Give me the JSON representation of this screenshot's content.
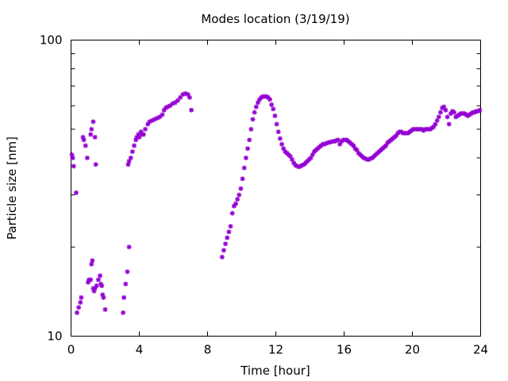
{
  "chart_data": {
    "type": "scatter",
    "title": "Modes location (3/19/19)",
    "xlabel": "Time [hour]",
    "ylabel": "Particle size [nm]",
    "xlim": [
      0,
      24
    ],
    "ylim": [
      10,
      100
    ],
    "yscale": "log",
    "grid": false,
    "legend": "none",
    "marker_color": "#9400d3",
    "x_ticks": [
      {
        "value": 0,
        "label": "0"
      },
      {
        "value": 4,
        "label": "4"
      },
      {
        "value": 8,
        "label": "8"
      },
      {
        "value": 12,
        "label": "12"
      },
      {
        "value": 16,
        "label": "16"
      },
      {
        "value": 20,
        "label": "20"
      },
      {
        "value": 24,
        "label": "24"
      }
    ],
    "y_ticks": [
      {
        "value": 10,
        "label": "10"
      },
      {
        "value": 100,
        "label": "100"
      }
    ],
    "y_minor_ticks": [
      20,
      30,
      40,
      50,
      60,
      70,
      80,
      90
    ],
    "points": [
      [
        0.05,
        41
      ],
      [
        0.1,
        40
      ],
      [
        0.15,
        37.5
      ],
      [
        0.3,
        30.5
      ],
      [
        0.35,
        12
      ],
      [
        0.45,
        12.5
      ],
      [
        0.55,
        13
      ],
      [
        0.6,
        13.5
      ],
      [
        0.7,
        47
      ],
      [
        0.75,
        46
      ],
      [
        0.85,
        44
      ],
      [
        0.95,
        40
      ],
      [
        1.0,
        15.2
      ],
      [
        1.05,
        15.5
      ],
      [
        1.15,
        15.5
      ],
      [
        1.2,
        17.5
      ],
      [
        1.25,
        18
      ],
      [
        1.3,
        14.5
      ],
      [
        1.35,
        14.2
      ],
      [
        1.4,
        14.5
      ],
      [
        1.5,
        14.8
      ],
      [
        1.6,
        15.5
      ],
      [
        1.7,
        16
      ],
      [
        1.75,
        15
      ],
      [
        1.8,
        14.8
      ],
      [
        1.85,
        13.8
      ],
      [
        1.9,
        13.5
      ],
      [
        2.0,
        12.3
      ],
      [
        1.15,
        48
      ],
      [
        1.2,
        50
      ],
      [
        1.3,
        53
      ],
      [
        1.4,
        47
      ],
      [
        1.45,
        38
      ],
      [
        3.05,
        12
      ],
      [
        3.1,
        13.5
      ],
      [
        3.2,
        15
      ],
      [
        3.3,
        16.5
      ],
      [
        3.4,
        20
      ],
      [
        3.35,
        38
      ],
      [
        3.4,
        39
      ],
      [
        3.5,
        40
      ],
      [
        3.6,
        42
      ],
      [
        3.7,
        44
      ],
      [
        3.8,
        46
      ],
      [
        3.85,
        47
      ],
      [
        3.95,
        48
      ],
      [
        4.0,
        47
      ],
      [
        4.1,
        49
      ],
      [
        4.15,
        48
      ],
      [
        4.25,
        48
      ],
      [
        4.35,
        50
      ],
      [
        4.5,
        52
      ],
      [
        4.6,
        53
      ],
      [
        4.75,
        53.5
      ],
      [
        4.9,
        54
      ],
      [
        5.05,
        54.5
      ],
      [
        5.2,
        55
      ],
      [
        5.35,
        56
      ],
      [
        5.45,
        58
      ],
      [
        5.55,
        59
      ],
      [
        5.65,
        59.5
      ],
      [
        5.8,
        60
      ],
      [
        5.95,
        61
      ],
      [
        6.1,
        61.5
      ],
      [
        6.25,
        62.5
      ],
      [
        6.4,
        64
      ],
      [
        6.55,
        65.5
      ],
      [
        6.7,
        66
      ],
      [
        6.85,
        65.5
      ],
      [
        6.95,
        64
      ],
      [
        7.05,
        58
      ],
      [
        8.85,
        18.5
      ],
      [
        8.95,
        19.5
      ],
      [
        9.05,
        20.5
      ],
      [
        9.15,
        21.5
      ],
      [
        9.25,
        22.5
      ],
      [
        9.35,
        23.5
      ],
      [
        9.45,
        26
      ],
      [
        9.55,
        27.5
      ],
      [
        9.65,
        28
      ],
      [
        9.75,
        29
      ],
      [
        9.85,
        30
      ],
      [
        9.95,
        31.5
      ],
      [
        10.05,
        34
      ],
      [
        10.15,
        37
      ],
      [
        10.25,
        40
      ],
      [
        10.35,
        43
      ],
      [
        10.45,
        46
      ],
      [
        10.55,
        50
      ],
      [
        10.65,
        54
      ],
      [
        10.75,
        57
      ],
      [
        10.85,
        59.5
      ],
      [
        10.95,
        61.5
      ],
      [
        11.05,
        63
      ],
      [
        11.15,
        64
      ],
      [
        11.25,
        64.5
      ],
      [
        11.35,
        64.5
      ],
      [
        11.45,
        64.5
      ],
      [
        11.55,
        64
      ],
      [
        11.65,
        63
      ],
      [
        11.75,
        60.5
      ],
      [
        11.85,
        58.5
      ],
      [
        11.95,
        55.5
      ],
      [
        12.05,
        52
      ],
      [
        12.15,
        49
      ],
      [
        12.25,
        46.5
      ],
      [
        12.35,
        44.5
      ],
      [
        12.45,
        43
      ],
      [
        12.55,
        42
      ],
      [
        12.65,
        41.5
      ],
      [
        12.75,
        41
      ],
      [
        12.85,
        40.5
      ],
      [
        12.95,
        39.5
      ],
      [
        13.05,
        38.5
      ],
      [
        13.15,
        37.8
      ],
      [
        13.25,
        37.5
      ],
      [
        13.35,
        37.3
      ],
      [
        13.45,
        37.5
      ],
      [
        13.55,
        37.8
      ],
      [
        13.65,
        38
      ],
      [
        13.75,
        38.5
      ],
      [
        13.85,
        39
      ],
      [
        13.95,
        39.5
      ],
      [
        14.05,
        40
      ],
      [
        14.15,
        41
      ],
      [
        14.25,
        42
      ],
      [
        14.35,
        42.5
      ],
      [
        14.45,
        43
      ],
      [
        14.55,
        43.5
      ],
      [
        14.65,
        44
      ],
      [
        14.75,
        44.5
      ],
      [
        14.85,
        44.5
      ],
      [
        14.95,
        44.8
      ],
      [
        15.05,
        45
      ],
      [
        15.15,
        45.2
      ],
      [
        15.25,
        45.3
      ],
      [
        15.35,
        45.5
      ],
      [
        15.45,
        45.5
      ],
      [
        15.55,
        45.8
      ],
      [
        15.65,
        46
      ],
      [
        15.75,
        44.5
      ],
      [
        15.85,
        45.5
      ],
      [
        15.95,
        46
      ],
      [
        16.05,
        46
      ],
      [
        16.15,
        46
      ],
      [
        16.25,
        45.5
      ],
      [
        16.35,
        45
      ],
      [
        16.45,
        44.5
      ],
      [
        16.55,
        44
      ],
      [
        16.65,
        43
      ],
      [
        16.75,
        42.5
      ],
      [
        16.85,
        41.5
      ],
      [
        16.95,
        41
      ],
      [
        17.05,
        40.5
      ],
      [
        17.15,
        40
      ],
      [
        17.25,
        39.8
      ],
      [
        17.35,
        39.5
      ],
      [
        17.45,
        39.5
      ],
      [
        17.55,
        39.8
      ],
      [
        17.65,
        40
      ],
      [
        17.75,
        40.5
      ],
      [
        17.85,
        41
      ],
      [
        17.95,
        41.5
      ],
      [
        18.05,
        42
      ],
      [
        18.15,
        42.5
      ],
      [
        18.25,
        43
      ],
      [
        18.35,
        43.5
      ],
      [
        18.45,
        44
      ],
      [
        18.55,
        45
      ],
      [
        18.65,
        45.5
      ],
      [
        18.75,
        46
      ],
      [
        18.85,
        46.5
      ],
      [
        18.95,
        47
      ],
      [
        19.05,
        47.5
      ],
      [
        19.15,
        48.5
      ],
      [
        19.25,
        49
      ],
      [
        19.35,
        49
      ],
      [
        19.45,
        48.5
      ],
      [
        19.55,
        48.5
      ],
      [
        19.65,
        48.5
      ],
      [
        19.75,
        48.5
      ],
      [
        19.85,
        49
      ],
      [
        19.95,
        49.5
      ],
      [
        20.05,
        50
      ],
      [
        20.15,
        50
      ],
      [
        20.25,
        50
      ],
      [
        20.35,
        50
      ],
      [
        20.45,
        50
      ],
      [
        20.55,
        50
      ],
      [
        20.65,
        49.5
      ],
      [
        20.75,
        50
      ],
      [
        20.85,
        50
      ],
      [
        20.95,
        50
      ],
      [
        21.05,
        50
      ],
      [
        21.15,
        50.5
      ],
      [
        21.25,
        51
      ],
      [
        21.35,
        52
      ],
      [
        21.45,
        53.5
      ],
      [
        21.55,
        55
      ],
      [
        21.65,
        57
      ],
      [
        21.75,
        59
      ],
      [
        21.85,
        59.5
      ],
      [
        21.95,
        58
      ],
      [
        22.05,
        55
      ],
      [
        22.15,
        52
      ],
      [
        22.25,
        56.5
      ],
      [
        22.35,
        57.5
      ],
      [
        22.45,
        57
      ],
      [
        22.55,
        55
      ],
      [
        22.65,
        55.5
      ],
      [
        22.75,
        56
      ],
      [
        22.85,
        56.5
      ],
      [
        22.95,
        56.5
      ],
      [
        23.05,
        56.5
      ],
      [
        23.15,
        56
      ],
      [
        23.25,
        55.5
      ],
      [
        23.35,
        56
      ],
      [
        23.45,
        56.5
      ],
      [
        23.55,
        57
      ],
      [
        23.65,
        57
      ],
      [
        23.75,
        57.5
      ],
      [
        23.85,
        57.5
      ],
      [
        23.95,
        58
      ]
    ]
  }
}
